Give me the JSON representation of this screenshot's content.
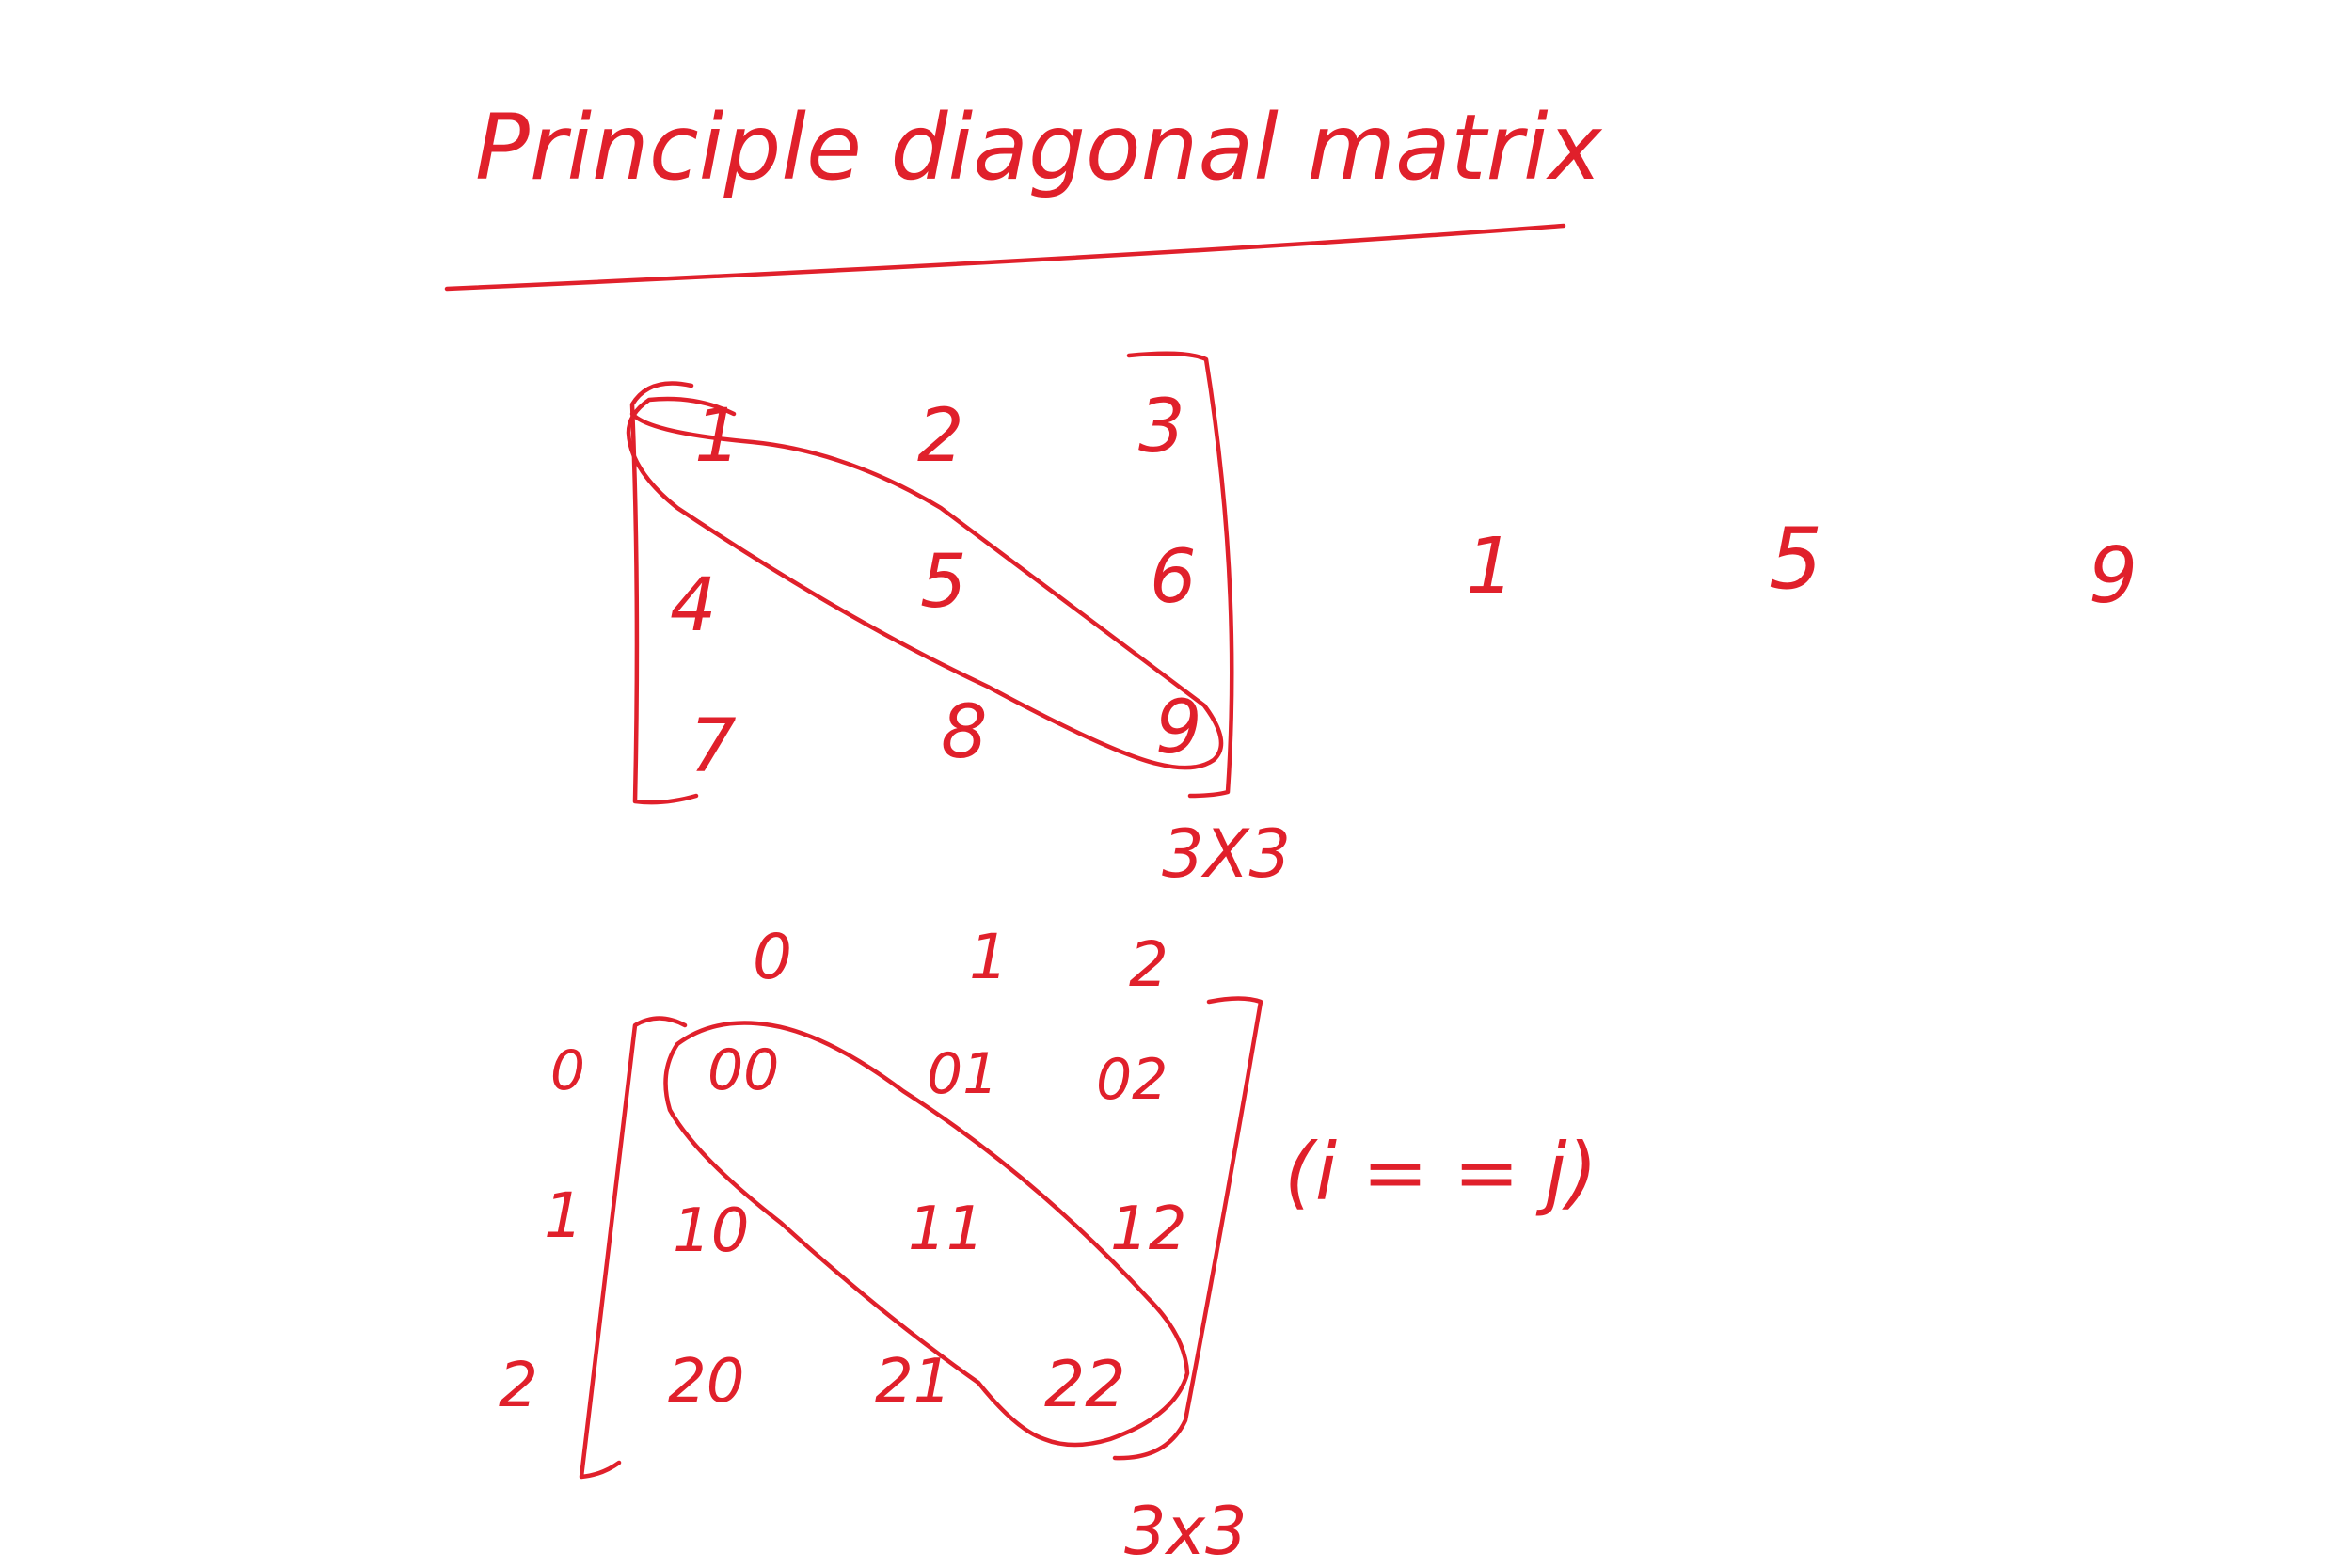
{
  "ink_color": "#e0202b",
  "title": "Principle diagonal matrix",
  "matrix_values": {
    "rows": [
      [
        "1",
        "2",
        "3"
      ],
      [
        "4",
        "5",
        "6"
      ],
      [
        "7",
        "8",
        "9"
      ]
    ],
    "size_label": "3X3"
  },
  "diagonal_result": [
    "1",
    "5",
    "9"
  ],
  "matrix_indices": {
    "column_headers": [
      "0",
      "1",
      "2"
    ],
    "row_headers": [
      "0",
      "1",
      "2"
    ],
    "rows": [
      [
        "00",
        "01",
        "02"
      ],
      [
        "10",
        "11",
        "12"
      ],
      [
        "20",
        "21",
        "22"
      ]
    ],
    "size_label": "3x3"
  },
  "condition": "(i = = j)"
}
